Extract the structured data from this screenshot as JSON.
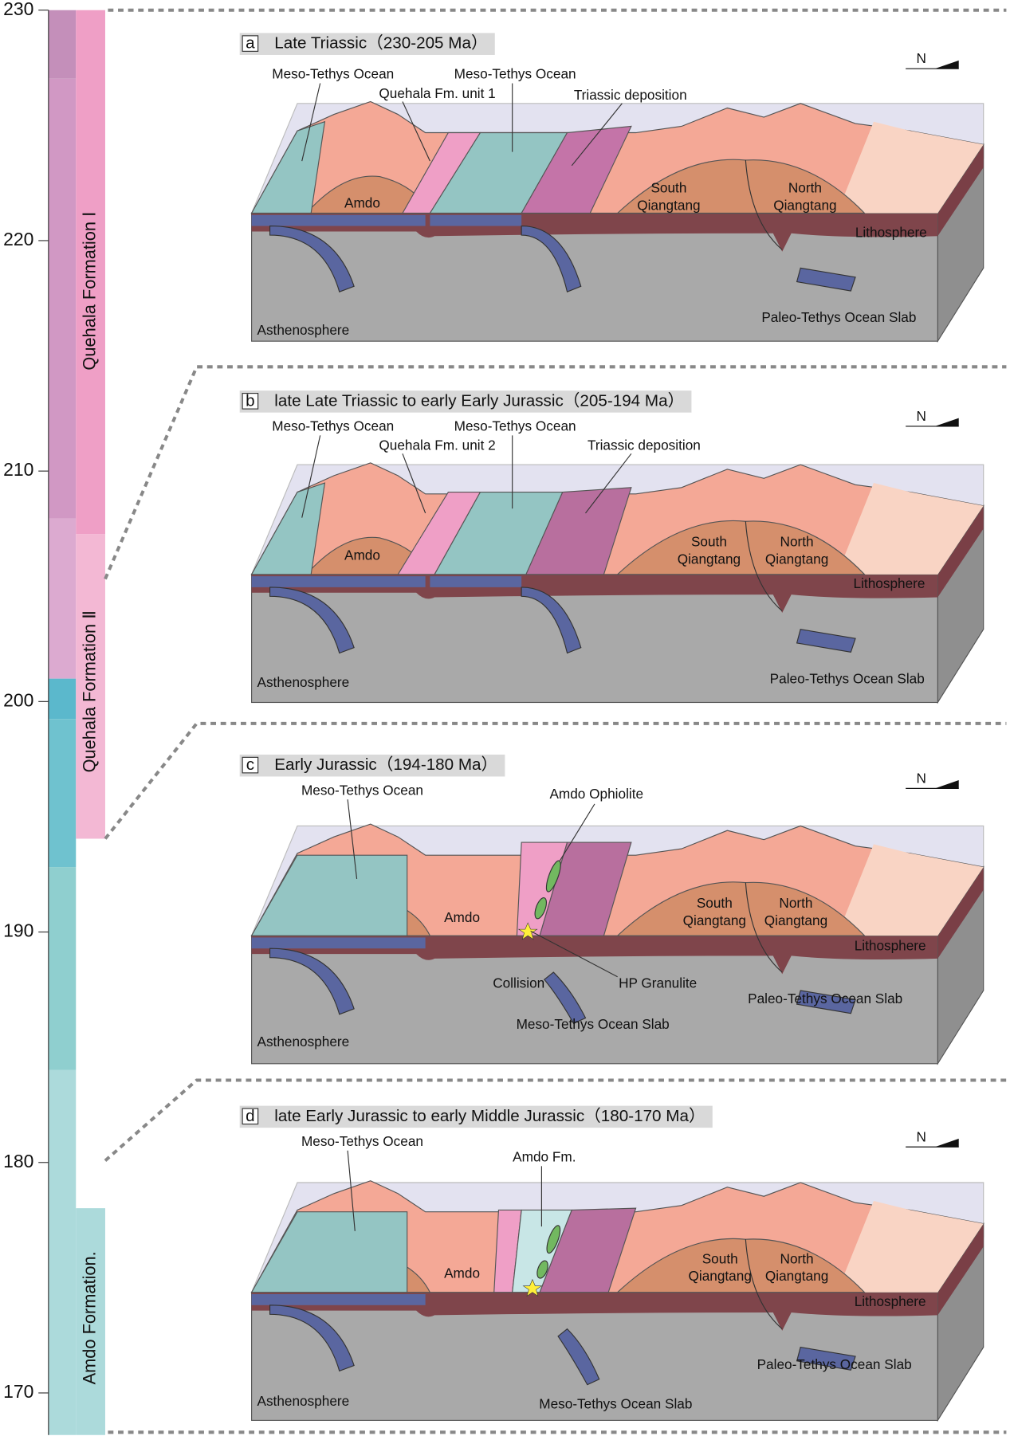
{
  "axis": {
    "ticks": [
      230,
      220,
      210,
      200,
      190,
      180,
      170
    ]
  },
  "formations": [
    "Quehala Formation Ⅰ",
    "Quehala Formation Ⅱ",
    "Amdo Formation."
  ],
  "panels": [
    {
      "letter": "a",
      "title": "Late Triassic（230-205 Ma）",
      "north": "N",
      "labels": [
        "Meso-Tethys Ocean",
        "Meso-Tethys Ocean",
        "Quehala Fm. unit 1",
        "Triassic deposition",
        "Amdo",
        "South Qiangtang",
        "North Qiangtang",
        "Lithosphere",
        "Paleo-Tethys Ocean Slab",
        "Asthenosphere"
      ]
    },
    {
      "letter": "b",
      "title": "late Late Triassic to early Early Jurassic（205-194 Ma）",
      "north": "N",
      "labels": [
        "Meso-Tethys Ocean",
        "Meso-Tethys Ocean",
        "Quehala Fm. unit 2",
        "Triassic deposition",
        "Amdo",
        "South Qiangtang",
        "North Qiangtang",
        "Lithosphere",
        "Paleo-Tethys Ocean Slab",
        "Asthenosphere"
      ]
    },
    {
      "letter": "c",
      "title": "Early Jurassic（194-180 Ma）",
      "north": "N",
      "labels": [
        "Meso-Tethys Ocean",
        "Amdo Ophiolite",
        "Amdo",
        "South Qiangtang",
        "North Qiangtang",
        "Lithosphere",
        "Collision",
        "HP Granulite",
        "Meso-Tethys Ocean Slab",
        "Paleo-Tethys Ocean Slab",
        "Asthenosphere"
      ]
    },
    {
      "letter": "d",
      "title": "late Early Jurassic to early Middle Jurassic（180-170 Ma）",
      "north": "N",
      "labels": [
        "Meso-Tethys Ocean",
        "Amdo Fm.",
        "Amdo",
        "South Qiangtang",
        "North Qiangtang",
        "Lithosphere",
        "Paleo-Tethys Ocean Slab",
        "Meso-Tethys Ocean Slab",
        "Asthenosphere"
      ]
    }
  ]
}
